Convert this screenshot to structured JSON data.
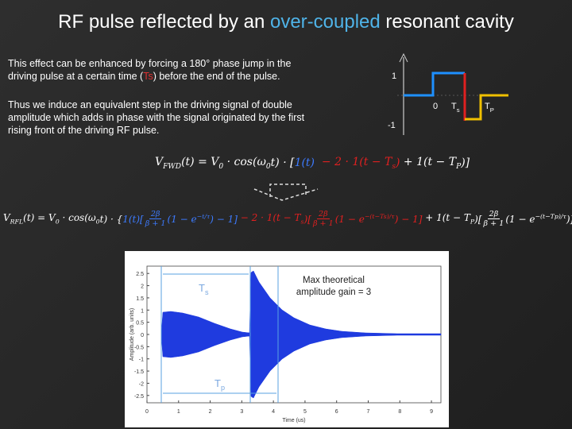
{
  "title": {
    "before": "RF pulse reflected by an ",
    "highlight": "over-coupled",
    "after": " resonant cavity"
  },
  "paragraphs": [
    {
      "before": "This  effect can be enhanced by forcing a 180° phase jump in the driving pulse at a certain time (",
      "highlight": "Ts",
      "after": ") before the end of the pulse."
    },
    {
      "text": "Thus we induce an equivalent step in the driving signal of double amplitude which adds in phase with the signal originated by the first rising front of the driving RF pulse."
    }
  ],
  "step_diagram": {
    "one": "1",
    "zero": "0",
    "minus_one": "-1",
    "ts": {
      "text": "T",
      "sub": "s"
    },
    "tp": {
      "text": "T",
      "sub": "P"
    }
  },
  "equation_fwd": [
    {
      "text": "V",
      "sub": "FWD"
    },
    {
      "text": "(t) = V",
      "sub": "0"
    },
    {
      "text": " · cos(ω",
      "sub": "0"
    },
    {
      "text": "t) · ["
    },
    {
      "text": "1(t)",
      "color": "#3d7bff"
    },
    {
      "text": "  − 2 · 1(t − T",
      "sub": "s",
      "color": "#e02020"
    },
    {
      "text": ")",
      "color": "#e02020"
    },
    {
      "text": " + 1(t − T",
      "sub": "P"
    },
    {
      "text": ")]"
    }
  ],
  "equation_rfl": [
    {
      "text": "V",
      "sub": "RFL"
    },
    {
      "text": "(t) = V",
      "sub": "0"
    },
    {
      "text": " · cos(ω",
      "sub": "0"
    },
    {
      "text": "t) · {"
    },
    {
      "text": "1(t)[",
      "color": "#3d7bff"
    },
    {
      "num": "2β",
      "den": "β + 1",
      "color": "#3d7bff"
    },
    {
      "text": "(1 − e",
      "sup": "−t/τ",
      "color": "#3d7bff"
    },
    {
      "text": ") − 1]",
      "color": "#3d7bff"
    },
    {
      "text": " − 2 · 1(t − T",
      "sub": "s",
      "color": "#e02020"
    },
    {
      "text": ")[",
      "color": "#e02020"
    },
    {
      "num": "2β",
      "den": "β + 1",
      "color": "#e02020"
    },
    {
      "text": "(1 − e",
      "sup": "−(t−Ts)/τ",
      "color": "#e02020"
    },
    {
      "text": ") − 1]",
      "color": "#e02020"
    },
    {
      "text": " + 1(t − T",
      "sub": "P"
    },
    {
      "text": ")["
    },
    {
      "num": "2β",
      "den": "β + 1"
    },
    {
      "text": "(1 − e",
      "sup": "−(t−Tp)/τ"
    },
    {
      "text": ")]}"
    }
  ],
  "plot": {
    "xlabel": "Time (us)",
    "ylabel": "Amplitude (arb. units)",
    "xlim": [
      0,
      9.3
    ],
    "ylim": [
      -2.8,
      2.8
    ],
    "xticks": [
      0,
      1,
      2,
      3,
      4,
      5,
      6,
      7,
      8,
      9
    ],
    "yticks": [
      2.5,
      2,
      1.5,
      1,
      0.5,
      0,
      -0.5,
      -1,
      -1.5,
      -2,
      -2.5
    ],
    "color": "#1f3bdf",
    "ts_label": {
      "text": "T",
      "sub": "s"
    },
    "tp_label": {
      "text": "T",
      "sub": "p"
    },
    "annotation": [
      "Max theoretical",
      "amplitude gain = 3"
    ]
  }
}
